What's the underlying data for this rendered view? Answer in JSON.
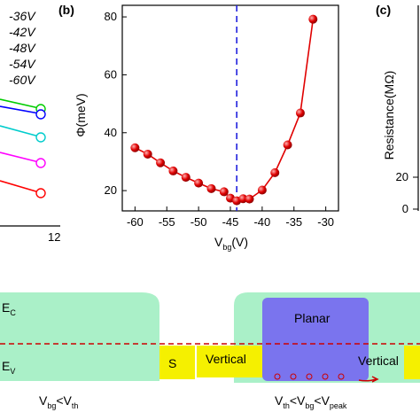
{
  "panel_a": {
    "legend": [
      "-36V",
      "-42V",
      "-48V",
      "-54V",
      "-60V"
    ],
    "legend_colors": [
      "#000000",
      "#0000cc",
      "#00aa00",
      "#ff00ff",
      "#cc0000"
    ],
    "marker_colors": [
      "#00cc00",
      "#0000ff",
      "#00cccc",
      "#ff00ff",
      "#ff0000"
    ],
    "x_tick": "12"
  },
  "panel_b": {
    "label": "(b)",
    "chart_data": {
      "type": "line",
      "title": "",
      "xlabel_main": "V",
      "xlabel_sub": "bg",
      "xlabel_unit": "(V)",
      "ylabel": "Φ(meV)",
      "xlim": [
        -62,
        -28
      ],
      "ylim": [
        13,
        84
      ],
      "x_ticks": [
        "-60",
        "-55",
        "-50",
        "-45",
        "-40",
        "-35",
        "-30"
      ],
      "x_tick_values": [
        -60,
        -55,
        -50,
        -45,
        -40,
        -35,
        -30
      ],
      "y_ticks": [
        "20",
        "40",
        "60",
        "80"
      ],
      "y_tick_values": [
        20,
        40,
        60,
        80
      ],
      "series": [
        {
          "color": "#e00000",
          "x": [
            -60,
            -58,
            -56,
            -54,
            -52,
            -50,
            -48,
            -46,
            -45,
            -44,
            -43,
            -42,
            -40,
            -38,
            -36,
            -34,
            -32
          ],
          "y": [
            34.8,
            32.6,
            29.6,
            26.8,
            24.6,
            22.6,
            20.7,
            19.6,
            17.4,
            16.5,
            17.2,
            17.1,
            20.2,
            26.2,
            35.8,
            46.8,
            79.2
          ]
        }
      ],
      "vline_x": -44
    }
  },
  "panel_c": {
    "label": "(c)",
    "ylabel": "Resistance(MΩ)",
    "y_ticks": [
      "0",
      "20"
    ]
  },
  "schematic": {
    "ec_label": "E",
    "ec_sub": "C",
    "ev_label": "E",
    "ev_sub": "V",
    "s_label": "S",
    "vertical_left": "Vertical",
    "planar": "Planar",
    "vertical_right": "Vertical",
    "cond_left": {
      "v1": "V",
      "s1": "bg",
      "op": "<V",
      "s2": "th"
    },
    "cond_right": {
      "v1": "V",
      "s1": "th",
      "op1": "<V",
      "s2": "bg",
      "op2": "<V",
      "s3": "peak"
    },
    "colors": {
      "band": "#aaf0c8",
      "yellow": "#f5f000",
      "planar": "#7a74ee",
      "fermi": "#cc0000"
    }
  }
}
